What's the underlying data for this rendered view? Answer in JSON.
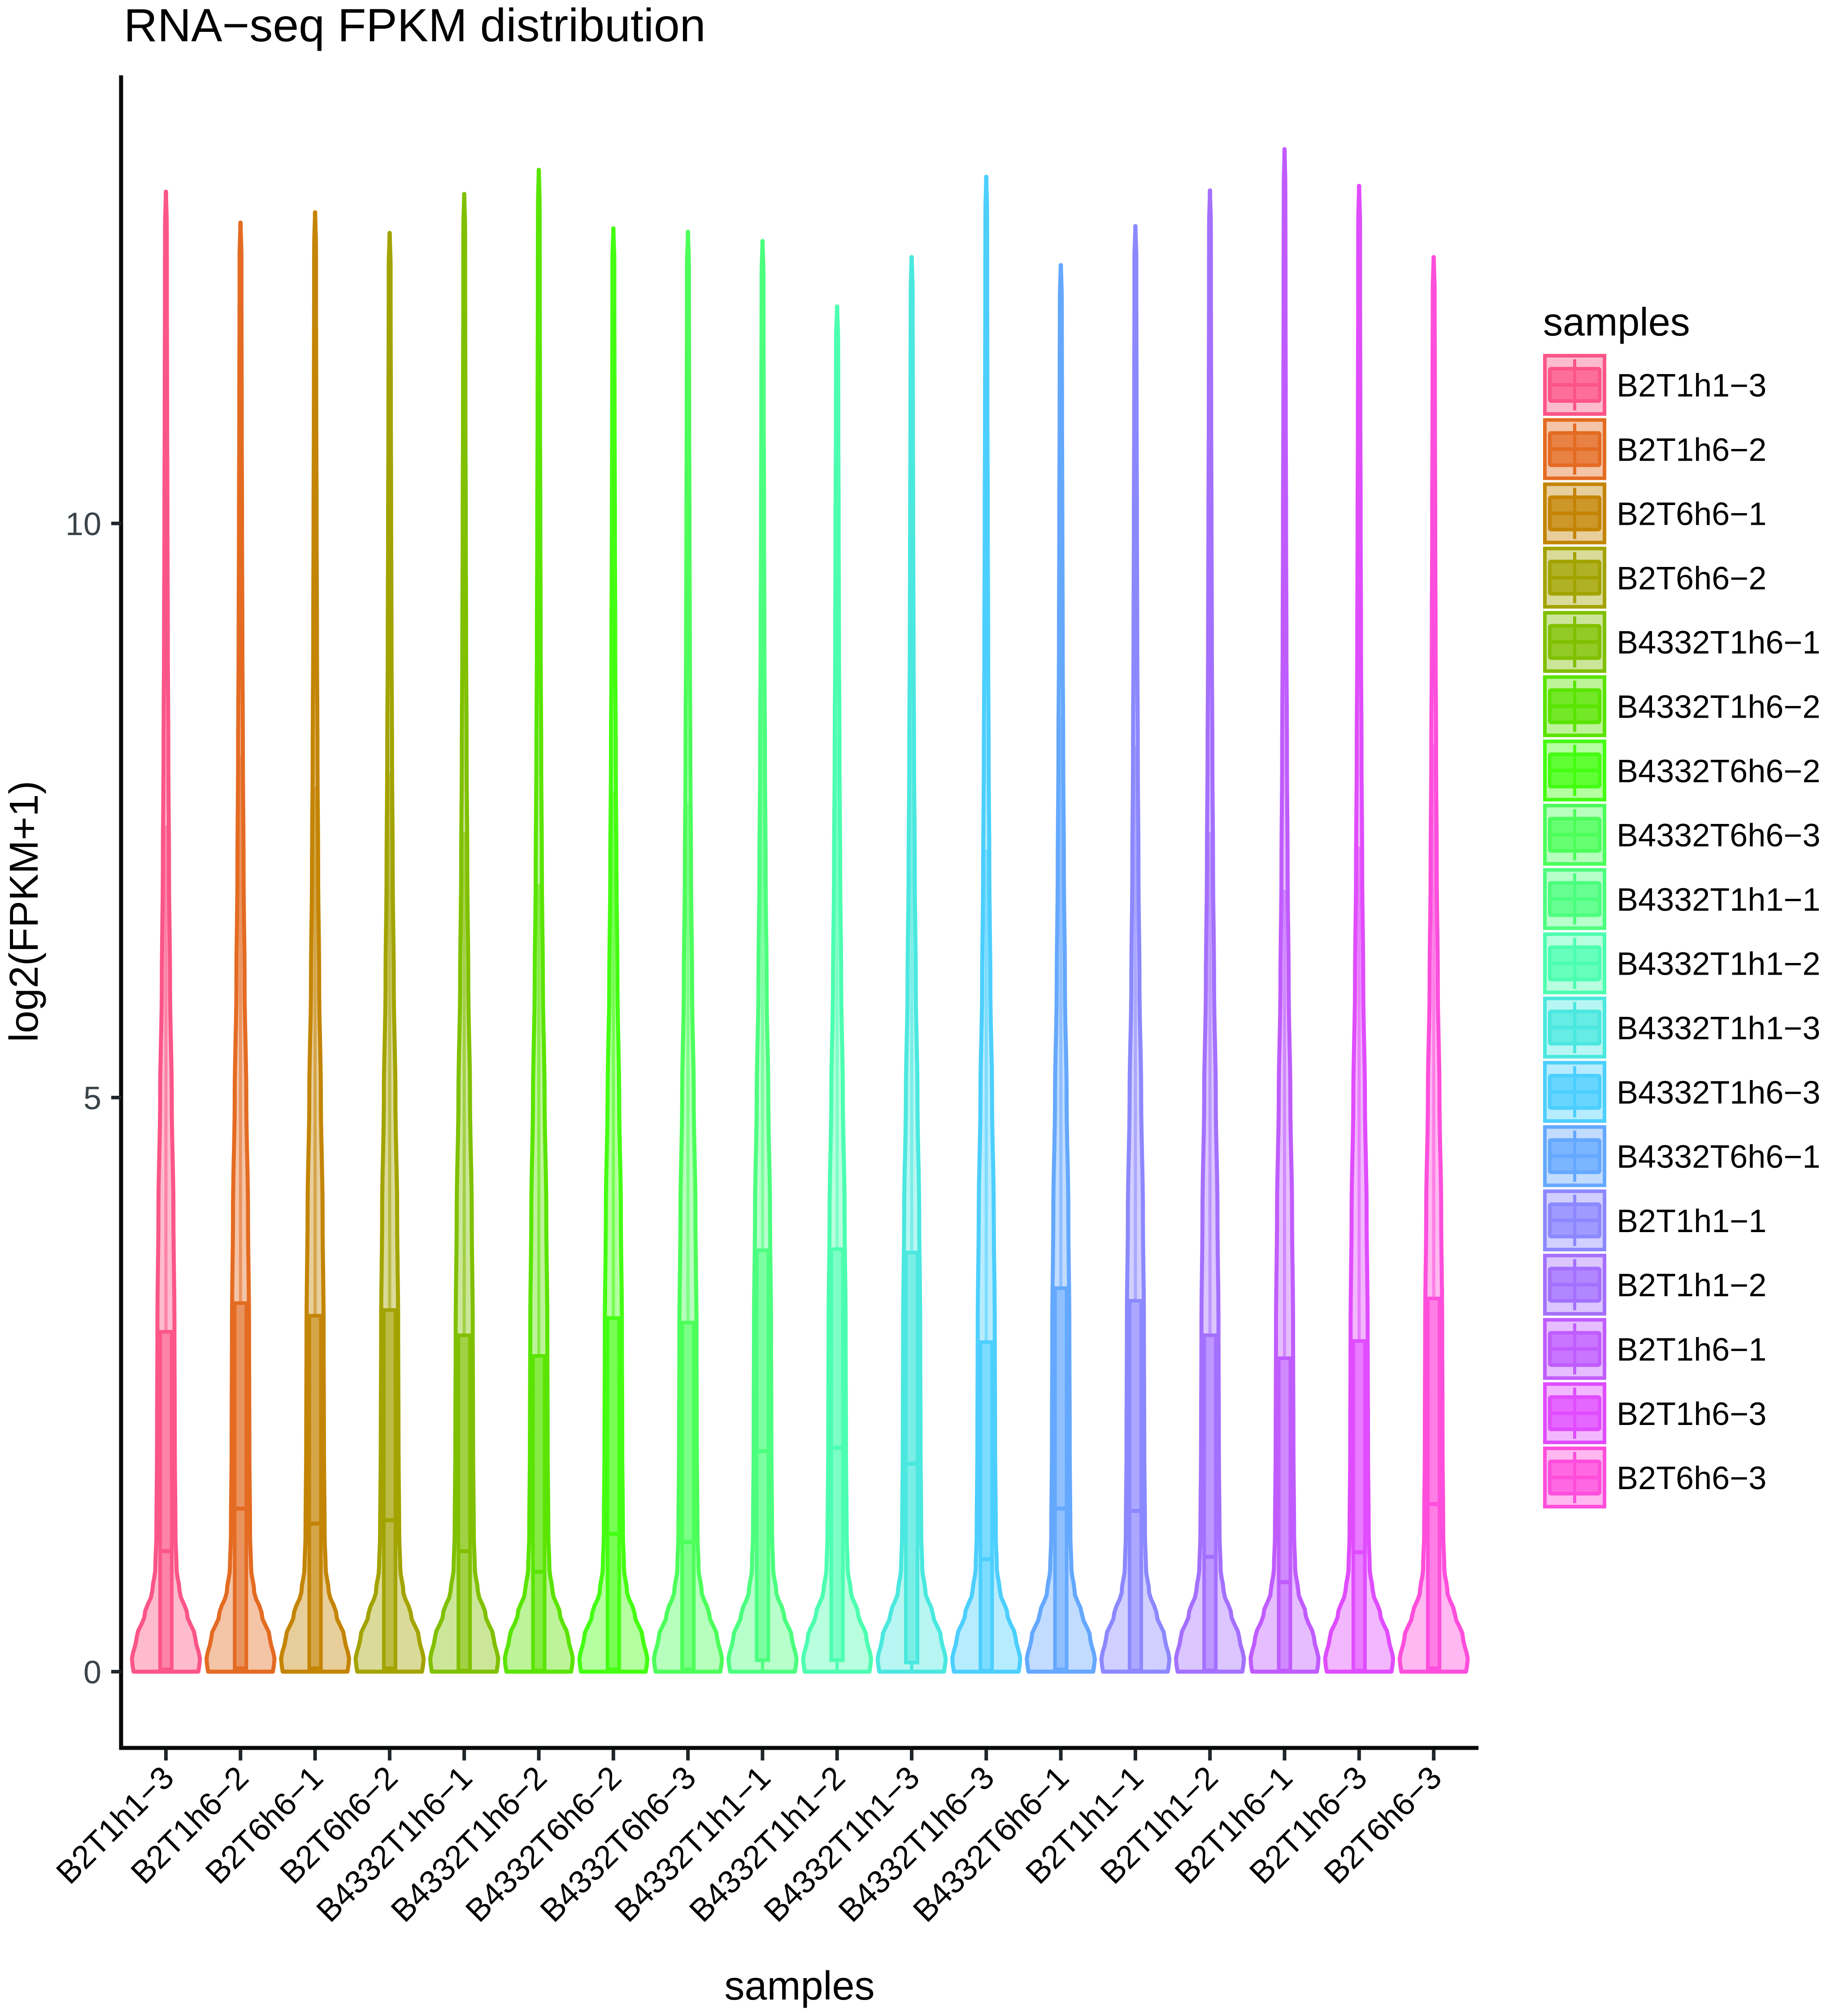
{
  "chart_data": {
    "type": "violin",
    "title": "RNA−seq FPKM distribution",
    "xlabel": "samples",
    "ylabel": "log2(FPKM+1)",
    "ylim": [
      -0.65,
      13.9
    ],
    "yticks": [
      0,
      5,
      10
    ],
    "ytick_labels": [
      "0",
      "5",
      "10"
    ],
    "grid": false,
    "legend": {
      "title": "samples",
      "position": "right"
    },
    "density_profile": [
      [
        0.0,
        0.95
      ],
      [
        0.1,
        1.0
      ],
      [
        0.3,
        0.86
      ],
      [
        0.5,
        0.62
      ],
      [
        0.7,
        0.4
      ],
      [
        0.9,
        0.31
      ],
      [
        1.2,
        0.28
      ],
      [
        2.0,
        0.26
      ],
      [
        3.0,
        0.25
      ],
      [
        4.0,
        0.22
      ],
      [
        5.0,
        0.17
      ],
      [
        6.0,
        0.12
      ],
      [
        7.0,
        0.09
      ],
      [
        8.0,
        0.07
      ],
      [
        9.0,
        0.055
      ],
      [
        10.0,
        0.045
      ],
      [
        11.0,
        0.035
      ],
      [
        12.0,
        0.028
      ],
      [
        13.5,
        0.02
      ]
    ],
    "series": [
      {
        "name": "B2T1h1−3",
        "color": "#FC5588",
        "min": 0,
        "q1": 0.02,
        "median": 1.05,
        "q3": 2.96,
        "max": 12.89
      },
      {
        "name": "B2T1h6−2",
        "color": "#E46B22",
        "min": 0,
        "q1": 0.03,
        "median": 1.42,
        "q3": 3.21,
        "max": 12.62
      },
      {
        "name": "B2T6h6−1",
        "color": "#C48404",
        "min": 0,
        "q1": 0.03,
        "median": 1.29,
        "q3": 3.1,
        "max": 12.71
      },
      {
        "name": "B2T6h6−2",
        "color": "#A3A300",
        "min": 0,
        "q1": 0.03,
        "median": 1.32,
        "q3": 3.15,
        "max": 12.53
      },
      {
        "name": "B4332T1h6−1",
        "color": "#80C000",
        "min": 0,
        "q1": 0.01,
        "median": 1.05,
        "q3": 2.93,
        "max": 12.87
      },
      {
        "name": "B4332T1h6−2",
        "color": "#5AE400",
        "min": 0,
        "q1": 0.01,
        "median": 0.87,
        "q3": 2.75,
        "max": 13.08
      },
      {
        "name": "B4332T6h6−2",
        "color": "#44FF12",
        "min": 0,
        "q1": 0.02,
        "median": 1.2,
        "q3": 3.08,
        "max": 12.57
      },
      {
        "name": "B4332T6h6−3",
        "color": "#4CFF5A",
        "min": 0,
        "q1": 0.02,
        "median": 1.13,
        "q3": 3.04,
        "max": 12.54
      },
      {
        "name": "B4332T1h1−1",
        "color": "#4CFF7E",
        "min": 0,
        "q1": 0.1,
        "median": 1.92,
        "q3": 3.67,
        "max": 12.46
      },
      {
        "name": "B4332T1h1−2",
        "color": "#4CFFB0",
        "min": 0,
        "q1": 0.1,
        "median": 1.95,
        "q3": 3.68,
        "max": 11.89
      },
      {
        "name": "B4332T1h1−3",
        "color": "#4AE8DF",
        "min": 0,
        "q1": 0.08,
        "median": 1.81,
        "q3": 3.65,
        "max": 12.32
      },
      {
        "name": "B4332T1h6−3",
        "color": "#4CCFFF",
        "min": 0,
        "q1": 0.01,
        "median": 0.98,
        "q3": 2.87,
        "max": 13.02
      },
      {
        "name": "B4332T6h6−1",
        "color": "#64A8FF",
        "min": 0,
        "q1": 0.02,
        "median": 1.42,
        "q3": 3.34,
        "max": 12.25
      },
      {
        "name": "B2T1h1−1",
        "color": "#8C88FF",
        "min": 0,
        "q1": 0.01,
        "median": 1.4,
        "q3": 3.23,
        "max": 12.59
      },
      {
        "name": "B2T1h1−2",
        "color": "#A470FF",
        "min": 0,
        "q1": 0.01,
        "median": 1.0,
        "q3": 2.93,
        "max": 12.9
      },
      {
        "name": "B2T1h6−1",
        "color": "#C05CFF",
        "min": 0,
        "q1": 0.01,
        "median": 0.78,
        "q3": 2.73,
        "max": 13.26
      },
      {
        "name": "B2T1h6−3",
        "color": "#E04CFF",
        "min": 0,
        "q1": 0.01,
        "median": 1.04,
        "q3": 2.88,
        "max": 12.94
      },
      {
        "name": "B2T6h6−3",
        "color": "#FF4EDC",
        "min": 0,
        "q1": 0.03,
        "median": 1.46,
        "q3": 3.25,
        "max": 12.32
      }
    ]
  }
}
